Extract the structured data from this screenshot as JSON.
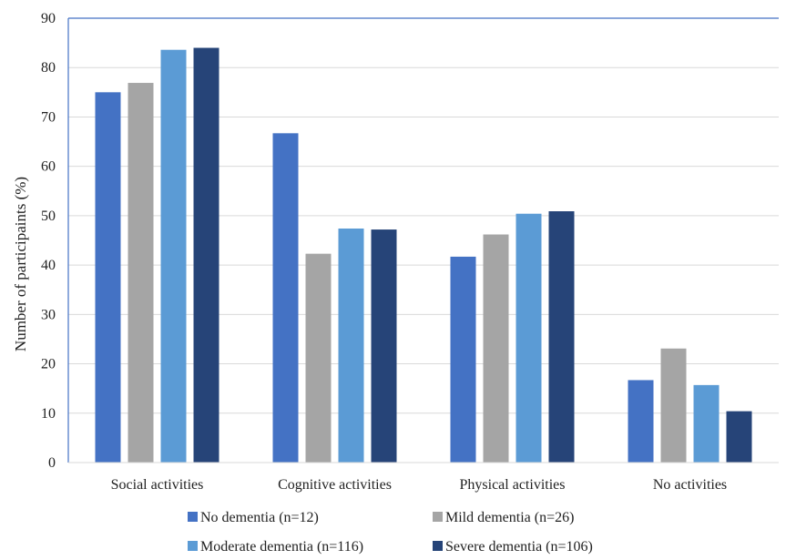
{
  "chart_data": {
    "type": "bar",
    "title": "",
    "xlabel": "",
    "ylabel": "Number of participaints (%)",
    "ylim": [
      0,
      90
    ],
    "yticks": [
      0,
      10,
      20,
      30,
      40,
      50,
      60,
      70,
      80,
      90
    ],
    "grid": true,
    "legend_position": "bottom",
    "categories": [
      "Social activities",
      "Cognitive activities",
      "Physical activities",
      "No activities"
    ],
    "series": [
      {
        "name": "No dementia (n=12)",
        "color": "#4472c4",
        "values": [
          75.0,
          66.7,
          41.7,
          16.7
        ]
      },
      {
        "name": "Mild dementia (n=26)",
        "color": "#a5a5a5",
        "values": [
          76.9,
          42.3,
          46.2,
          23.1
        ]
      },
      {
        "name": "Moderate dementia (n=116)",
        "color": "#5b9bd5",
        "values": [
          83.6,
          47.4,
          50.4,
          15.7
        ]
      },
      {
        "name": "Severe dementia (n=106)",
        "color": "#264478",
        "values": [
          84.0,
          47.2,
          50.9,
          10.4
        ]
      }
    ]
  }
}
